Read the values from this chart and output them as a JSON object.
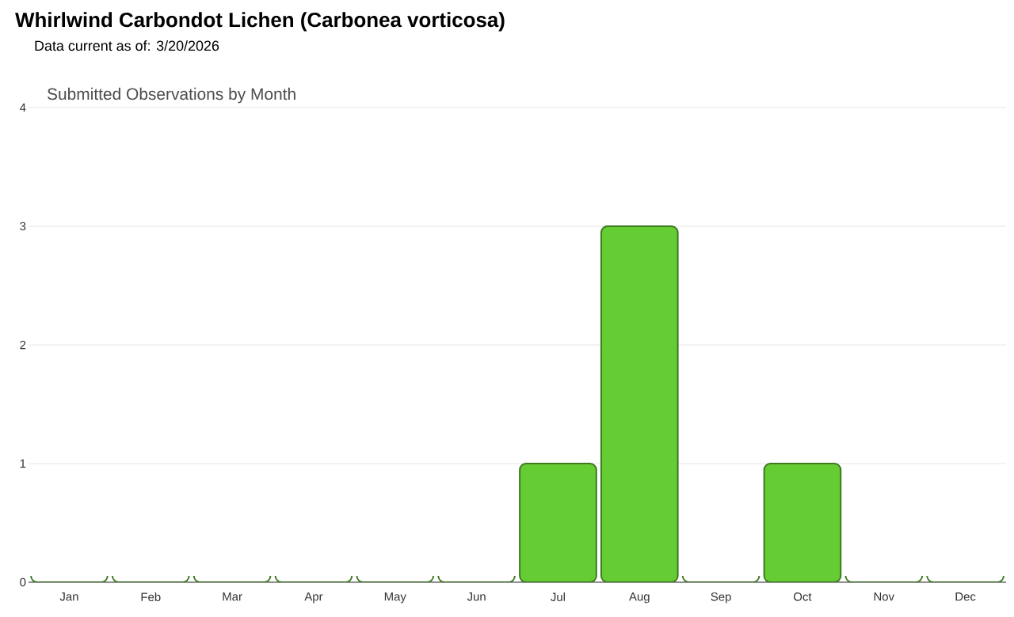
{
  "chart_data": {
    "type": "bar",
    "title": "Whirlwind Carbondot Lichen   (Carbonea vorticosa)",
    "subtitle": "Data current as of: 3/20/2026",
    "annotations": [
      "Submitted Observations by Month"
    ],
    "categories": [
      "Jan",
      "Feb",
      "Mar",
      "Apr",
      "May",
      "Jun",
      "Jul",
      "Aug",
      "Sep",
      "Oct",
      "Nov",
      "Dec"
    ],
    "values": [
      0,
      0,
      0,
      0,
      0,
      0,
      1,
      3,
      0,
      1,
      0,
      0
    ],
    "color": "#66cc33",
    "ylim": [
      0,
      4
    ],
    "yticks": [
      0,
      1,
      2,
      3,
      4
    ],
    "grid": "y"
  }
}
